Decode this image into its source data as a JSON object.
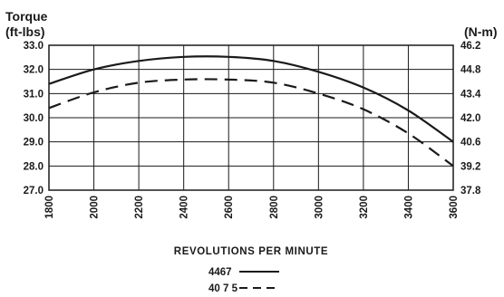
{
  "chart_data": {
    "type": "line",
    "ylabel_left": [
      "Torque",
      "(ft-lbs)"
    ],
    "ylabel_right": "(N-m)",
    "xlabel": "REVOLUTIONS PER MINUTE",
    "x": [
      1800,
      2000,
      2200,
      2400,
      2600,
      2800,
      3000,
      3200,
      3400,
      3600
    ],
    "x_tick_labels": [
      "1800",
      "2000",
      "2200",
      "2400",
      "2600",
      "2800",
      "3000",
      "3200",
      "3400",
      "3600"
    ],
    "xlim": [
      1800,
      3600
    ],
    "ylim": [
      27.0,
      33.0
    ],
    "y_ticks_left": [
      27.0,
      28.0,
      29.0,
      30.0,
      31.0,
      32.0,
      33.0
    ],
    "y_tick_labels_left": [
      "27.0",
      "28.0",
      "29.0",
      "30.0",
      "31.0",
      "32.0",
      "33.0"
    ],
    "y_tick_labels_right": [
      "37.8",
      "39.2",
      "40.6",
      "42.0",
      "43.4",
      "44.8",
      "46.2"
    ],
    "grid": true,
    "legend_position": "bottom-center",
    "series": [
      {
        "name": "4467",
        "style": "solid",
        "values": [
          31.4,
          32.0,
          32.35,
          32.52,
          32.52,
          32.35,
          31.9,
          31.25,
          30.3,
          29.0
        ]
      },
      {
        "name": "40 7 5",
        "style": "dashed",
        "values": [
          30.4,
          31.05,
          31.45,
          31.58,
          31.58,
          31.45,
          31.0,
          30.35,
          29.35,
          28.0
        ]
      }
    ],
    "colors": {
      "line": "#1a1a1a",
      "grid": "#1a1a1a"
    }
  }
}
